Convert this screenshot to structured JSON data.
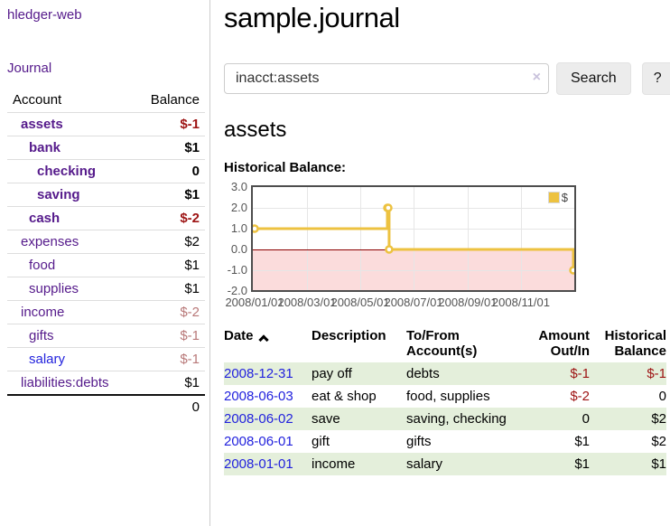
{
  "app": {
    "title": "hledger-web"
  },
  "colors": {
    "link_purple": "#551a8b",
    "link_blue": "#2222dd",
    "negative_strong": "#9d1313",
    "negative_soft": "#b87878",
    "row_stripe_green": "#e4efdb",
    "series_gold": "#edc240",
    "chart_negative_region": "#fbdcdc",
    "chart_zero_line": "#8b0000"
  },
  "sidebar": {
    "journal_label": "Journal",
    "table": {
      "account_header": "Account",
      "balance_header": "Balance",
      "rows": [
        {
          "name": "assets",
          "depth": 1,
          "bold": true,
          "link": "purple",
          "balance": "$-1",
          "neg": "strong"
        },
        {
          "name": "bank",
          "depth": 2,
          "bold": true,
          "link": "purple",
          "balance": "$1",
          "neg": null
        },
        {
          "name": "checking",
          "depth": 3,
          "bold": true,
          "link": "purple",
          "balance": "0",
          "neg": null
        },
        {
          "name": "saving",
          "depth": 3,
          "bold": true,
          "link": "purple",
          "balance": "$1",
          "neg": null
        },
        {
          "name": "cash",
          "depth": 2,
          "bold": true,
          "link": "purple",
          "balance": "$-2",
          "neg": "strong"
        },
        {
          "name": "expenses",
          "depth": 1,
          "bold": false,
          "link": "purple",
          "balance": "$2",
          "neg": null
        },
        {
          "name": "food",
          "depth": 2,
          "bold": false,
          "link": "purple",
          "balance": "$1",
          "neg": null
        },
        {
          "name": "supplies",
          "depth": 2,
          "bold": false,
          "link": "purple",
          "balance": "$1",
          "neg": null
        },
        {
          "name": "income",
          "depth": 1,
          "bold": false,
          "link": "purple",
          "balance": "$-2",
          "neg": "soft"
        },
        {
          "name": "gifts",
          "depth": 2,
          "bold": false,
          "link": "purple",
          "balance": "$-1",
          "neg": "soft"
        },
        {
          "name": "salary",
          "depth": 2,
          "bold": false,
          "link": "blue",
          "balance": "$-1",
          "neg": "soft"
        },
        {
          "name": "liabilities:debts",
          "depth": 1,
          "bold": false,
          "link": "purple",
          "balance": "$1",
          "neg": null
        }
      ],
      "total": "0"
    }
  },
  "main": {
    "title": "sample.journal",
    "search": {
      "value": "inacct:assets",
      "clear_icon": "×",
      "button_label": "Search",
      "help_label": "?"
    },
    "account_heading": "assets",
    "chart_heading": "Historical Balance:"
  },
  "chart_data": {
    "type": "line",
    "step": true,
    "title": "Historical Balance",
    "series": [
      {
        "name": "$",
        "x": [
          "2008-01-01",
          "2008-06-01",
          "2008-06-02",
          "2008-06-03",
          "2008-12-31"
        ],
        "y": [
          1,
          2,
          2,
          0,
          -1
        ]
      }
    ],
    "ylim": [
      -2,
      3
    ],
    "yticks": [
      3.0,
      2.0,
      1.0,
      0.0,
      -1.0,
      -2.0
    ],
    "xlim": [
      "2008-01-01",
      "2008-12-31"
    ],
    "xticks": [
      "2008/01/01",
      "2008/03/01",
      "2008/05/01",
      "2008/07/01",
      "2008/09/01",
      "2008/11/01"
    ],
    "grid": true,
    "legend": {
      "label": "$",
      "position": "top-right"
    },
    "negative_region_shaded": true
  },
  "register": {
    "headers": {
      "date": "Date",
      "description": "Description",
      "account": "To/From Account(s)",
      "amount": "Amount Out/In",
      "balance": "Historical Balance"
    },
    "rows": [
      {
        "date": "2008-12-31",
        "description": "pay off",
        "accounts": "debts",
        "amount": "$-1",
        "amount_neg": true,
        "balance": "$-1",
        "balance_neg": true
      },
      {
        "date": "2008-06-03",
        "description": "eat & shop",
        "accounts": "food, supplies",
        "amount": "$-2",
        "amount_neg": true,
        "balance": "0",
        "balance_neg": false
      },
      {
        "date": "2008-06-02",
        "description": "save",
        "accounts": "saving, checking",
        "amount": "0",
        "amount_neg": false,
        "balance": "$2",
        "balance_neg": false
      },
      {
        "date": "2008-06-01",
        "description": "gift",
        "accounts": "gifts",
        "amount": "$1",
        "amount_neg": false,
        "balance": "$2",
        "balance_neg": false
      },
      {
        "date": "2008-01-01",
        "description": "income",
        "accounts": "salary",
        "amount": "$1",
        "amount_neg": false,
        "balance": "$1",
        "balance_neg": false
      }
    ]
  }
}
